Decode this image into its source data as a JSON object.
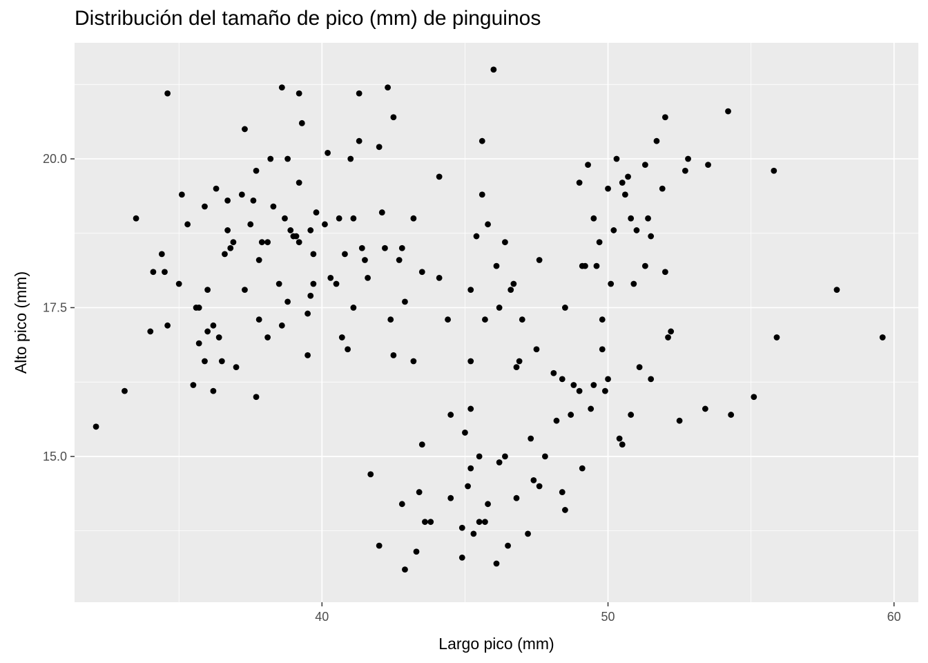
{
  "chart_data": {
    "type": "scatter",
    "title": "Distribución del tamaño de pico (mm) de pinguinos",
    "xlabel": "Largo pico (mm)",
    "ylabel": "Alto pico (mm)",
    "xlim": [
      31.35,
      60.85
    ],
    "ylim": [
      12.55,
      21.95
    ],
    "x_ticks": [
      40,
      50,
      60
    ],
    "x_tick_labels": [
      "40",
      "50",
      "60"
    ],
    "y_ticks": [
      15,
      17.5,
      20
    ],
    "y_tick_labels": [
      "15.0",
      "17.5",
      "20.0"
    ],
    "grid": true,
    "legend": "none",
    "colors": {
      "panel": "#ebebeb",
      "grid": "#ffffff",
      "point": "#000000"
    },
    "points": [
      [
        32.1,
        15.5
      ],
      [
        33.1,
        16.1
      ],
      [
        33.5,
        19.0
      ],
      [
        34.0,
        17.1
      ],
      [
        34.1,
        18.1
      ],
      [
        34.4,
        18.4
      ],
      [
        34.5,
        18.1
      ],
      [
        34.6,
        21.1
      ],
      [
        34.6,
        17.2
      ],
      [
        35.0,
        17.9
      ],
      [
        35.1,
        19.4
      ],
      [
        35.3,
        18.9
      ],
      [
        35.5,
        16.2
      ],
      [
        35.6,
        17.5
      ],
      [
        35.7,
        16.9
      ],
      [
        35.7,
        17.5
      ],
      [
        35.9,
        19.2
      ],
      [
        35.9,
        16.6
      ],
      [
        36.0,
        17.8
      ],
      [
        36.0,
        17.1
      ],
      [
        36.2,
        17.2
      ],
      [
        36.2,
        16.1
      ],
      [
        36.3,
        19.5
      ],
      [
        36.4,
        17.0
      ],
      [
        36.5,
        16.6
      ],
      [
        36.6,
        18.4
      ],
      [
        36.7,
        18.8
      ],
      [
        36.7,
        19.3
      ],
      [
        36.8,
        18.5
      ],
      [
        36.9,
        18.6
      ],
      [
        37.0,
        16.5
      ],
      [
        37.2,
        19.4
      ],
      [
        37.3,
        17.8
      ],
      [
        37.3,
        20.5
      ],
      [
        37.5,
        18.9
      ],
      [
        37.6,
        19.3
      ],
      [
        37.7,
        19.8
      ],
      [
        37.7,
        16.0
      ],
      [
        37.8,
        18.3
      ],
      [
        37.8,
        17.3
      ],
      [
        37.9,
        18.6
      ],
      [
        38.1,
        18.6
      ],
      [
        38.1,
        17.0
      ],
      [
        38.2,
        20.0
      ],
      [
        38.3,
        19.2
      ],
      [
        38.5,
        17.9
      ],
      [
        38.6,
        21.2
      ],
      [
        38.6,
        17.2
      ],
      [
        38.7,
        19.0
      ],
      [
        38.8,
        20.0
      ],
      [
        38.8,
        17.6
      ],
      [
        38.9,
        18.8
      ],
      [
        39.0,
        18.7
      ],
      [
        39.1,
        18.7
      ],
      [
        39.2,
        21.1
      ],
      [
        39.2,
        19.6
      ],
      [
        39.2,
        18.6
      ],
      [
        39.3,
        20.6
      ],
      [
        39.5,
        17.4
      ],
      [
        39.5,
        16.7
      ],
      [
        39.6,
        18.8
      ],
      [
        39.6,
        17.7
      ],
      [
        39.7,
        18.4
      ],
      [
        39.7,
        17.9
      ],
      [
        39.8,
        19.1
      ],
      [
        40.1,
        18.9
      ],
      [
        40.2,
        20.1
      ],
      [
        40.3,
        18.0
      ],
      [
        40.5,
        17.9
      ],
      [
        40.6,
        19.0
      ],
      [
        40.7,
        17.0
      ],
      [
        40.8,
        18.4
      ],
      [
        40.9,
        16.8
      ],
      [
        41.0,
        20.0
      ],
      [
        41.1,
        19.0
      ],
      [
        41.1,
        17.5
      ],
      [
        41.3,
        21.1
      ],
      [
        41.3,
        20.3
      ],
      [
        41.4,
        18.5
      ],
      [
        41.5,
        18.3
      ],
      [
        41.6,
        18.0
      ],
      [
        41.7,
        14.7
      ],
      [
        42.0,
        20.2
      ],
      [
        42.0,
        13.5
      ],
      [
        42.1,
        19.1
      ],
      [
        42.2,
        18.5
      ],
      [
        42.3,
        21.2
      ],
      [
        42.4,
        17.3
      ],
      [
        42.5,
        20.7
      ],
      [
        42.5,
        16.7
      ],
      [
        42.7,
        18.3
      ],
      [
        42.8,
        18.5
      ],
      [
        42.8,
        14.2
      ],
      [
        42.9,
        17.6
      ],
      [
        42.9,
        13.1
      ],
      [
        43.2,
        19.0
      ],
      [
        43.2,
        16.6
      ],
      [
        43.3,
        13.4
      ],
      [
        43.4,
        14.4
      ],
      [
        43.5,
        18.1
      ],
      [
        43.5,
        15.2
      ],
      [
        43.6,
        13.9
      ],
      [
        43.8,
        13.9
      ],
      [
        44.1,
        19.7
      ],
      [
        44.1,
        18.0
      ],
      [
        44.4,
        17.3
      ],
      [
        44.5,
        15.7
      ],
      [
        44.5,
        14.3
      ],
      [
        44.9,
        13.8
      ],
      [
        44.9,
        13.3
      ],
      [
        45.0,
        15.4
      ],
      [
        45.1,
        14.5
      ],
      [
        45.2,
        17.8
      ],
      [
        45.2,
        16.6
      ],
      [
        45.2,
        15.8
      ],
      [
        45.2,
        14.8
      ],
      [
        45.3,
        13.7
      ],
      [
        45.4,
        18.7
      ],
      [
        45.5,
        15.0
      ],
      [
        45.5,
        13.9
      ],
      [
        45.6,
        20.3
      ],
      [
        45.6,
        19.4
      ],
      [
        45.7,
        17.3
      ],
      [
        45.7,
        13.9
      ],
      [
        45.8,
        18.9
      ],
      [
        45.8,
        14.2
      ],
      [
        46.0,
        21.5
      ],
      [
        46.1,
        18.2
      ],
      [
        46.1,
        13.2
      ],
      [
        46.2,
        17.5
      ],
      [
        46.2,
        14.9
      ],
      [
        46.4,
        18.6
      ],
      [
        46.4,
        15.0
      ],
      [
        46.5,
        13.5
      ],
      [
        46.6,
        17.8
      ],
      [
        46.7,
        17.9
      ],
      [
        46.8,
        16.5
      ],
      [
        46.8,
        14.3
      ],
      [
        46.9,
        16.6
      ],
      [
        47.0,
        17.3
      ],
      [
        47.2,
        13.7
      ],
      [
        47.3,
        15.3
      ],
      [
        47.4,
        14.6
      ],
      [
        47.5,
        16.8
      ],
      [
        47.6,
        18.3
      ],
      [
        47.6,
        14.5
      ],
      [
        47.8,
        15.0
      ],
      [
        48.1,
        16.4
      ],
      [
        48.2,
        15.6
      ],
      [
        48.4,
        16.3
      ],
      [
        48.4,
        14.4
      ],
      [
        48.5,
        17.5
      ],
      [
        48.5,
        14.1
      ],
      [
        48.7,
        15.7
      ],
      [
        48.8,
        16.2
      ],
      [
        49.0,
        19.6
      ],
      [
        49.0,
        16.1
      ],
      [
        49.1,
        18.2
      ],
      [
        49.1,
        14.8
      ],
      [
        49.2,
        18.2
      ],
      [
        49.3,
        19.9
      ],
      [
        49.4,
        15.8
      ],
      [
        49.5,
        19.0
      ],
      [
        49.5,
        16.2
      ],
      [
        49.6,
        18.2
      ],
      [
        49.7,
        18.6
      ],
      [
        49.8,
        17.3
      ],
      [
        49.8,
        16.8
      ],
      [
        49.9,
        16.1
      ],
      [
        50.0,
        19.5
      ],
      [
        50.0,
        16.3
      ],
      [
        50.1,
        17.9
      ],
      [
        50.2,
        18.8
      ],
      [
        50.3,
        20.0
      ],
      [
        50.4,
        15.3
      ],
      [
        50.5,
        19.6
      ],
      [
        50.5,
        15.2
      ],
      [
        50.6,
        19.4
      ],
      [
        50.7,
        19.7
      ],
      [
        50.8,
        19.0
      ],
      [
        50.8,
        15.7
      ],
      [
        50.9,
        17.9
      ],
      [
        51.0,
        18.8
      ],
      [
        51.1,
        16.5
      ],
      [
        51.3,
        19.9
      ],
      [
        51.3,
        18.2
      ],
      [
        51.4,
        19.0
      ],
      [
        51.5,
        18.7
      ],
      [
        51.5,
        16.3
      ],
      [
        51.7,
        20.3
      ],
      [
        51.9,
        19.5
      ],
      [
        52.0,
        20.7
      ],
      [
        52.0,
        18.1
      ],
      [
        52.1,
        17.0
      ],
      [
        52.2,
        17.1
      ],
      [
        52.5,
        15.6
      ],
      [
        52.7,
        19.8
      ],
      [
        52.8,
        20.0
      ],
      [
        53.4,
        15.8
      ],
      [
        53.5,
        19.9
      ],
      [
        54.2,
        20.8
      ],
      [
        54.3,
        15.7
      ],
      [
        55.1,
        16.0
      ],
      [
        55.8,
        19.8
      ],
      [
        55.9,
        17.0
      ],
      [
        58.0,
        17.8
      ],
      [
        59.6,
        17.0
      ]
    ]
  }
}
